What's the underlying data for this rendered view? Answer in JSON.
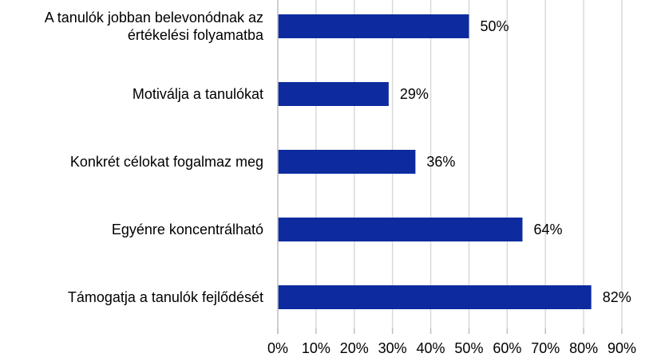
{
  "chart_data": {
    "type": "bar",
    "orientation": "horizontal",
    "categories": [
      [
        "A tanulók jobban belevonódnak az",
        "értékelési folyamatba"
      ],
      [
        "Motiválja a tanulókat"
      ],
      [
        "Konkrét célokat fogalmaz meg"
      ],
      [
        "Egyénre koncentrálható"
      ],
      [
        "Támogatja a tanulók fejlődését"
      ]
    ],
    "values": [
      50,
      29,
      36,
      64,
      82
    ],
    "data_labels": [
      "50%",
      "29%",
      "36%",
      "64%",
      "82%"
    ],
    "xlim": [
      0,
      90
    ],
    "x_ticks": [
      "0%",
      "10%",
      "20%",
      "30%",
      "40%",
      "50%",
      "60%",
      "70%",
      "80%",
      "90%"
    ],
    "grid": true,
    "legend": "none",
    "bar_color": "#0d2b9e"
  }
}
